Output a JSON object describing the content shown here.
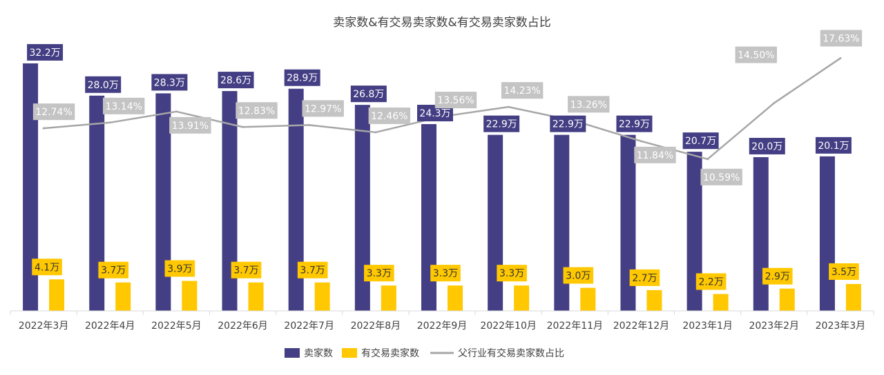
{
  "chart_data": {
    "type": "bar",
    "title": "卖家数&有交易卖家数&有交易卖家数占比",
    "categories": [
      "2022年3月",
      "2022年4月",
      "2022年5月",
      "2022年6月",
      "2022年7月",
      "2022年8月",
      "2022年9月",
      "2022年10月",
      "2022年11月",
      "2022年12月",
      "2023年1月",
      "2023年2月",
      "2023年3月"
    ],
    "series": [
      {
        "name": "卖家数",
        "kind": "bar",
        "color": "#443f84",
        "values": [
          32.2,
          28.0,
          28.3,
          28.6,
          28.9,
          26.8,
          24.3,
          22.9,
          22.9,
          22.9,
          20.7,
          20.0,
          20.1
        ],
        "labels": [
          "32.2万",
          "28.0万",
          "28.3万",
          "28.6万",
          "28.9万",
          "26.8万",
          "24.3万",
          "22.9万",
          "22.9万",
          "22.9万",
          "20.7万",
          "20.0万",
          "20.1万"
        ]
      },
      {
        "name": "有交易卖家数",
        "kind": "bar",
        "color": "#ffc800",
        "values": [
          4.1,
          3.7,
          3.9,
          3.7,
          3.7,
          3.3,
          3.3,
          3.3,
          3.0,
          2.7,
          2.2,
          2.9,
          3.5
        ],
        "labels": [
          "4.1万",
          "3.7万",
          "3.9万",
          "3.7万",
          "3.7万",
          "3.3万",
          "3.3万",
          "3.3万",
          "3.0万",
          "2.7万",
          "2.2万",
          "2.9万",
          "3.5万"
        ]
      },
      {
        "name": "父行业有交易卖家数占比",
        "kind": "line",
        "color": "#a6a6a6",
        "values": [
          12.74,
          13.14,
          13.91,
          12.83,
          12.97,
          12.46,
          13.56,
          14.23,
          13.26,
          11.84,
          10.59,
          14.5,
          17.63
        ],
        "labels": [
          "12.74%",
          "13.14%",
          "13.91%",
          "12.83%",
          "12.97%",
          "12.46%",
          "13.56%",
          "14.23%",
          "13.26%",
          "11.84%",
          "10.59%",
          "14.50%",
          "17.63%"
        ]
      }
    ],
    "ylim_bars": [
      0,
      33
    ],
    "ylim_line": [
      0,
      17.7
    ],
    "legend": "bottom-center",
    "grid": false
  }
}
